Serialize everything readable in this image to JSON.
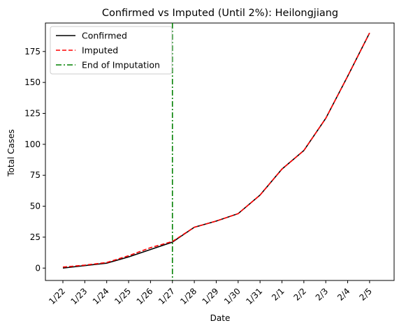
{
  "chart_data": {
    "type": "line",
    "title": "Confirmed vs Imputed (Until 2%): Heilongjiang",
    "xlabel": "Date",
    "ylabel": "Total Cases",
    "categories": [
      "1/22",
      "1/23",
      "1/24",
      "1/25",
      "1/26",
      "1/27",
      "1/28",
      "1/29",
      "1/30",
      "1/31",
      "2/1",
      "2/2",
      "2/3",
      "2/4",
      "2/5"
    ],
    "ylim": [
      -10,
      198
    ],
    "yticks": [
      0,
      25,
      50,
      75,
      100,
      125,
      150,
      175
    ],
    "series": [
      {
        "name": "Confirmed",
        "color": "#000000",
        "style": "solid",
        "values": [
          0,
          2,
          4,
          9,
          15,
          21,
          33,
          38,
          44,
          59,
          80,
          95,
          121,
          155,
          190
        ]
      },
      {
        "name": "Imputed",
        "color": "#ff0000",
        "style": "dashed",
        "values": [
          0.8,
          2.4,
          4.5,
          10,
          16.5,
          21.5,
          33,
          38,
          44,
          59,
          80,
          95,
          121,
          155,
          190
        ]
      }
    ],
    "vline": {
      "name": "End of Imputation",
      "x": "1/27",
      "color": "#008000",
      "style": "dashdot"
    },
    "legend_position": "top-left",
    "grid": false
  }
}
